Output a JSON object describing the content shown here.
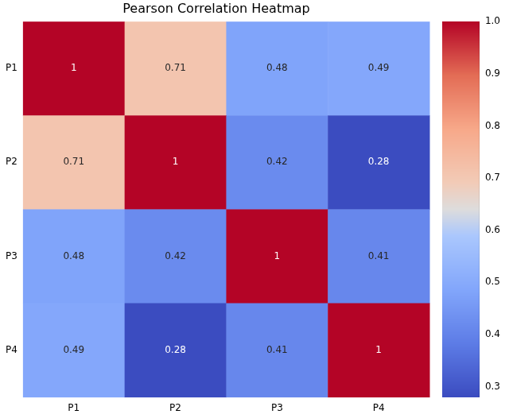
{
  "chart_data": {
    "type": "heatmap",
    "title": "Pearson Correlation Heatmap",
    "categories": [
      "P1",
      "P2",
      "P3",
      "P4"
    ],
    "y_categories": [
      "P1",
      "P2",
      "P3",
      "P4"
    ],
    "cells": [
      [
        1,
        0.71,
        0.48,
        0.49
      ],
      [
        0.71,
        1,
        0.42,
        0.28
      ],
      [
        0.48,
        0.42,
        1,
        0.41
      ],
      [
        0.49,
        0.28,
        0.41,
        1
      ]
    ],
    "data_labels": true,
    "grid": false,
    "colorbar": {
      "range": [
        0.28,
        1
      ],
      "ticks": [
        0.3,
        0.4,
        0.5,
        0.6,
        0.7,
        0.8,
        0.9,
        {
          "value": 1,
          "label": "1.0"
        }
      ]
    }
  }
}
